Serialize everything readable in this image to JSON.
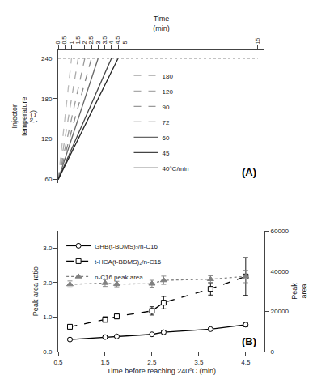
{
  "chart_data": [
    {
      "type": "line",
      "title": "(A)",
      "x_label": "Time\n(min)",
      "y_label": "Injector\ntemperature\n(ºC)",
      "xlim": [
        0,
        15.5
      ],
      "xticks": [
        0,
        0.5,
        1,
        1.5,
        2,
        2.5,
        3,
        3.5,
        4,
        4.5,
        5,
        15
      ],
      "ylim": [
        55,
        252
      ],
      "yticks": [
        60,
        120,
        180,
        240
      ],
      "grid": false,
      "legend": "lower center",
      "series": [
        {
          "name": "180",
          "color": "#bbbbbb",
          "line_style": "dashed",
          "x": [
            0,
            1
          ],
          "values": [
            60,
            240
          ]
        },
        {
          "name": "120",
          "color": "#aaaaaa",
          "line_style": "dashed",
          "x": [
            0,
            1.5
          ],
          "values": [
            60,
            240
          ]
        },
        {
          "name": "90",
          "color": "#999999",
          "line_style": "dashed",
          "x": [
            0,
            2
          ],
          "values": [
            60,
            240
          ]
        },
        {
          "name": "72",
          "color": "#888888",
          "line_style": "dashed",
          "x": [
            0,
            2.5
          ],
          "values": [
            60,
            240
          ]
        },
        {
          "name": "60",
          "color": "#666666",
          "line_style": "solid",
          "x": [
            0,
            3
          ],
          "values": [
            60,
            240
          ]
        },
        {
          "name": "45",
          "color": "#444444",
          "line_style": "solid",
          "x": [
            0,
            4
          ],
          "values": [
            60,
            240
          ]
        },
        {
          "name": "40°C/min",
          "color": "#222222",
          "line_style": "solid",
          "x": [
            0,
            4.5
          ],
          "values": [
            60,
            240
          ]
        },
        {
          "color": "#888888",
          "line_style": "dotted",
          "x": [
            0,
            15
          ],
          "values": [
            240,
            240
          ]
        }
      ]
    },
    {
      "type": "line",
      "title": "(B)",
      "x_label": "Time before reaching 240ºC (min)",
      "y_label": "Peak area ratio",
      "y2_label": "Peak\narea",
      "x": [
        0.75,
        1.5,
        1.75,
        2.5,
        2.75,
        3.75,
        4.5
      ],
      "xlim": [
        0.5,
        4.9
      ],
      "xticks": [
        0.5,
        1.5,
        2.5,
        3.5,
        4.5
      ],
      "ylim": [
        0,
        3.5
      ],
      "yticks": [
        {
          "value": 0.0,
          "label": "0.0"
        },
        {
          "value": 1.0,
          "label": "1.0"
        },
        {
          "value": 2.0,
          "label": "2.0"
        },
        {
          "value": 3.0,
          "label": "3.0"
        }
      ],
      "y2lim": [
        0,
        60000
      ],
      "y2ticks": [
        0,
        20000,
        40000,
        60000
      ],
      "grid": false,
      "legend": "upper left",
      "series": [
        {
          "name": "GHB(t-BDMS)₂/n-C16",
          "color": "black",
          "line_style": "solid",
          "marker": "circle_open",
          "values": [
            0.35,
            0.42,
            0.44,
            0.5,
            0.56,
            0.65,
            0.78
          ],
          "errors": [
            0.03,
            0.03,
            0.03,
            0.03,
            0.04,
            0.04,
            0.06
          ]
        },
        {
          "name": "t-HCA(t-BDMS)₂/n-C16",
          "color": "black",
          "line_style": "dashed",
          "marker": "square_open",
          "values": [
            0.72,
            0.93,
            1.02,
            1.18,
            1.42,
            1.82,
            2.18
          ],
          "errors": [
            0.06,
            0.08,
            0.07,
            0.12,
            0.18,
            0.18,
            0.55
          ]
        },
        {
          "name": "n-C16 peak area",
          "color": "gray",
          "line_style": "dotted",
          "marker": "triangle_up",
          "values": [
            1.95,
            1.99,
            1.96,
            1.97,
            2.07,
            2.1,
            2.18
          ],
          "errors": [
            0.1,
            0.1,
            0.08,
            0.1,
            0.12,
            0.1,
            0.18
          ]
        }
      ]
    }
  ]
}
